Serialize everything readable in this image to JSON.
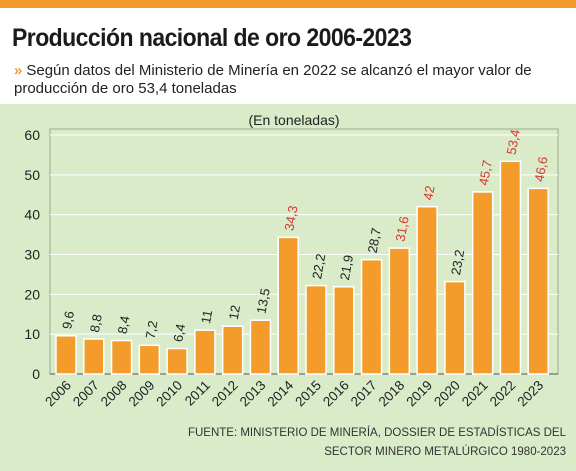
{
  "header": {
    "title": "Producción nacional de oro 2006-2023",
    "subtitle_marker": "»",
    "subtitle": "Según datos del Ministerio de Minería en 2022 se alcanzó el mayor valor de producción de oro 53,4 toneladas"
  },
  "footer": {
    "source_line1": "FUENTE: MINISTERIO DE MINERÍA, DOSSIER DE ESTADÍSTICAS DEL",
    "source_line2": "SECTOR MINERO METALÚRGICO 1980-2023"
  },
  "colors": {
    "bar": "#f39c2b",
    "panel": "#d9ebc9",
    "label_dark": "#222222",
    "label_red": "#d9382f"
  },
  "chart_data": {
    "type": "bar",
    "unit_label": "(En toneladas)",
    "categories": [
      "2006",
      "2007",
      "2008",
      "2009",
      "2010",
      "2011",
      "2012",
      "2013",
      "2014",
      "2015",
      "2016",
      "2017",
      "2018",
      "2019",
      "2020",
      "2021",
      "2022",
      "2023"
    ],
    "values": [
      9.6,
      8.8,
      8.4,
      7.2,
      6.4,
      11,
      12,
      13.5,
      34.3,
      22.2,
      21.9,
      28.7,
      31.6,
      42,
      23.2,
      45.7,
      53.4,
      46.6
    ],
    "data_labels": [
      "9,6",
      "8,8",
      "8,4",
      "7,2",
      "6,4",
      "11",
      "12",
      "13,5",
      "34,3",
      "22,2",
      "21,9",
      "28,7",
      "31,6",
      "42",
      "23,2",
      "45,7",
      "53,4",
      "46,6"
    ],
    "label_colors": [
      "dark",
      "dark",
      "dark",
      "dark",
      "dark",
      "dark",
      "dark",
      "dark",
      "red",
      "dark",
      "dark",
      "dark",
      "red",
      "red",
      "dark",
      "red",
      "red",
      "red"
    ],
    "ylim": [
      0,
      60
    ],
    "yticks": [
      0,
      10,
      20,
      30,
      40,
      50,
      60
    ],
    "grid": true
  }
}
